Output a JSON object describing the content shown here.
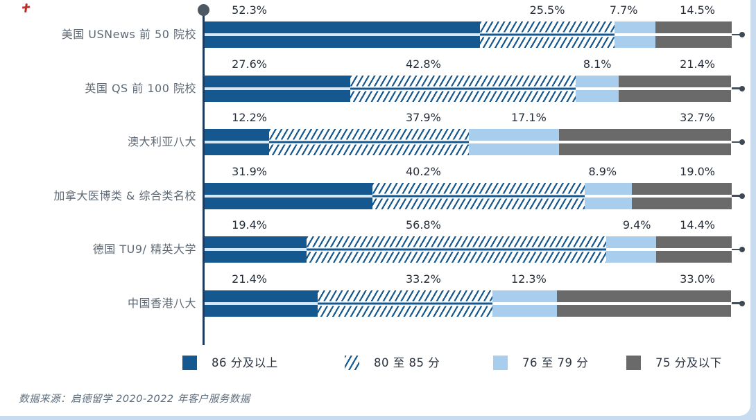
{
  "chart_data": {
    "type": "bar",
    "variant": "horizontal_stacked_percentage",
    "title": "",
    "categories": [
      "美国 USNews 前 50 院校",
      "英国 QS 前 100 院校",
      "澳大利亚八大",
      "加拿大医博类 & 综合类名校",
      "德国 TU9/ 精英大学",
      "中国香港八大"
    ],
    "series": [
      {
        "name": "86 分及以上",
        "style": "solid_dark_blue",
        "color": "#15578F",
        "values": [
          52.3,
          27.6,
          12.2,
          31.9,
          19.4,
          21.4
        ]
      },
      {
        "name": "80 至 85 分",
        "style": "hatched_diagonal",
        "color": "#15578F",
        "values": [
          25.5,
          42.8,
          37.9,
          40.2,
          56.8,
          33.2
        ]
      },
      {
        "name": "76 至 79 分",
        "style": "solid_light_blue",
        "color": "#A9CDEC",
        "values": [
          7.7,
          8.1,
          17.1,
          8.9,
          9.4,
          12.3
        ]
      },
      {
        "name": "75 分及以下",
        "style": "solid_gray",
        "color": "#6A6A6A",
        "values": [
          14.5,
          21.4,
          32.7,
          19.0,
          14.4,
          33.0
        ]
      }
    ],
    "value_suffix": "%",
    "xlim": [
      0,
      100
    ],
    "grid": false,
    "legend_position": "bottom",
    "axis_color": "#1E3A5F",
    "axis_marker_color": "#4C5862",
    "label_centers_pct": [
      [
        8.5,
        65.0,
        79.5,
        93.5
      ],
      [
        8.5,
        41.5,
        74.5,
        93.5
      ],
      [
        8.5,
        41.5,
        61.5,
        93.5
      ],
      [
        8.5,
        41.5,
        75.5,
        93.5
      ],
      [
        8.5,
        41.5,
        82.0,
        93.5
      ],
      [
        8.5,
        41.5,
        61.5,
        93.5
      ]
    ]
  },
  "source_note": "数据来源：启德留学 2020-2022 年客户服务数据"
}
